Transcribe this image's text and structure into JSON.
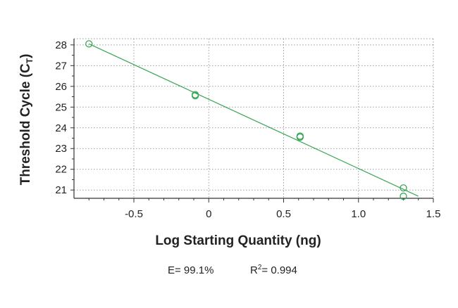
{
  "chart_data": {
    "type": "scatter",
    "xlabel": "Log Starting Quantity (ng)",
    "ylabel_main": "Threshold Cycle (C",
    "ylabel_sub": "T",
    "ylabel_close": ")",
    "xlim": [
      -0.9,
      1.5
    ],
    "ylim": [
      20.6,
      28.3
    ],
    "x_ticks": [
      -0.5,
      0,
      0.5,
      1.0,
      1.5
    ],
    "x_tick_labels": [
      "-0.5",
      "0",
      "0.5",
      "1.0",
      "1.5"
    ],
    "y_ticks": [
      21,
      22,
      23,
      24,
      25,
      26,
      27,
      28
    ],
    "y_tick_labels": [
      "21",
      "22",
      "23",
      "24",
      "25",
      "26",
      "27",
      "28"
    ],
    "grid": true,
    "points": [
      {
        "x": -0.8,
        "y": 28.05
      },
      {
        "x": -0.09,
        "y": 25.6
      },
      {
        "x": -0.09,
        "y": 25.55
      },
      {
        "x": 0.61,
        "y": 23.6
      },
      {
        "x": 0.61,
        "y": 23.55
      },
      {
        "x": 1.3,
        "y": 21.1
      },
      {
        "x": 1.3,
        "y": 20.7
      }
    ],
    "fit_line": {
      "x": [
        -0.8,
        1.4
      ],
      "y": [
        28.05,
        20.7
      ]
    },
    "efficiency_text": "E= 99.1%",
    "r2_label": "R",
    "r2_sup": "2",
    "r2_value": "= 0.994"
  },
  "colors": {
    "series": "#3aa655",
    "axis": "#333333",
    "grid": "#9a9a9a",
    "text": "#222222"
  }
}
